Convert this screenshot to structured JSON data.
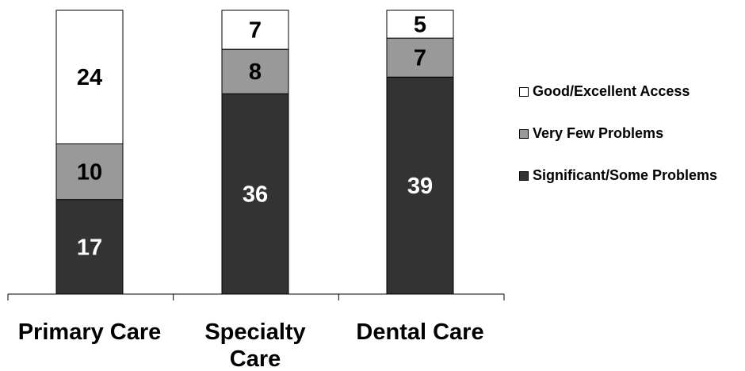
{
  "chart_data": {
    "type": "bar",
    "stacked": true,
    "categories": [
      "Primary Care",
      "Specialty Care",
      "Dental Care"
    ],
    "series": [
      {
        "name": "Significant/Some Problems",
        "values": [
          17,
          36,
          39
        ],
        "color": "#333333",
        "label_color": "#ffffff"
      },
      {
        "name": "Very Few Problems",
        "values": [
          10,
          8,
          7
        ],
        "color": "#999999",
        "label_color": "#000000"
      },
      {
        "name": "Good/Excellent Access",
        "values": [
          24,
          7,
          5
        ],
        "color": "#ffffff",
        "label_color": "#000000"
      }
    ],
    "legend_order": [
      "Good/Excellent Access",
      "Very Few Problems",
      "Significant/Some Problems"
    ],
    "legend_position": "right",
    "ylim": [
      0,
      51
    ],
    "grid": false
  }
}
